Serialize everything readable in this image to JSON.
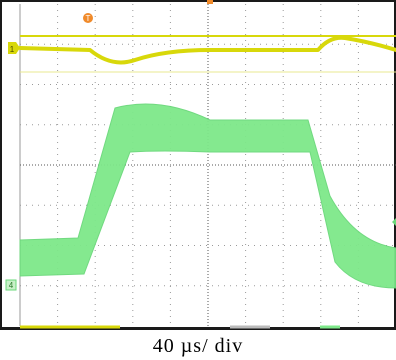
{
  "caption": "40 µs/ div",
  "markers": {
    "trigger_marker": "T",
    "ch1_marker": "1",
    "ch2_marker": "4"
  },
  "colors": {
    "channel1": "#d8d80a",
    "channel2": "#7ee88a",
    "trigger": "#f08a2a",
    "grid": "#9a9a9a",
    "frame": "#1a1a1a",
    "ch2_marker_bg": "#c8f0c8"
  }
}
